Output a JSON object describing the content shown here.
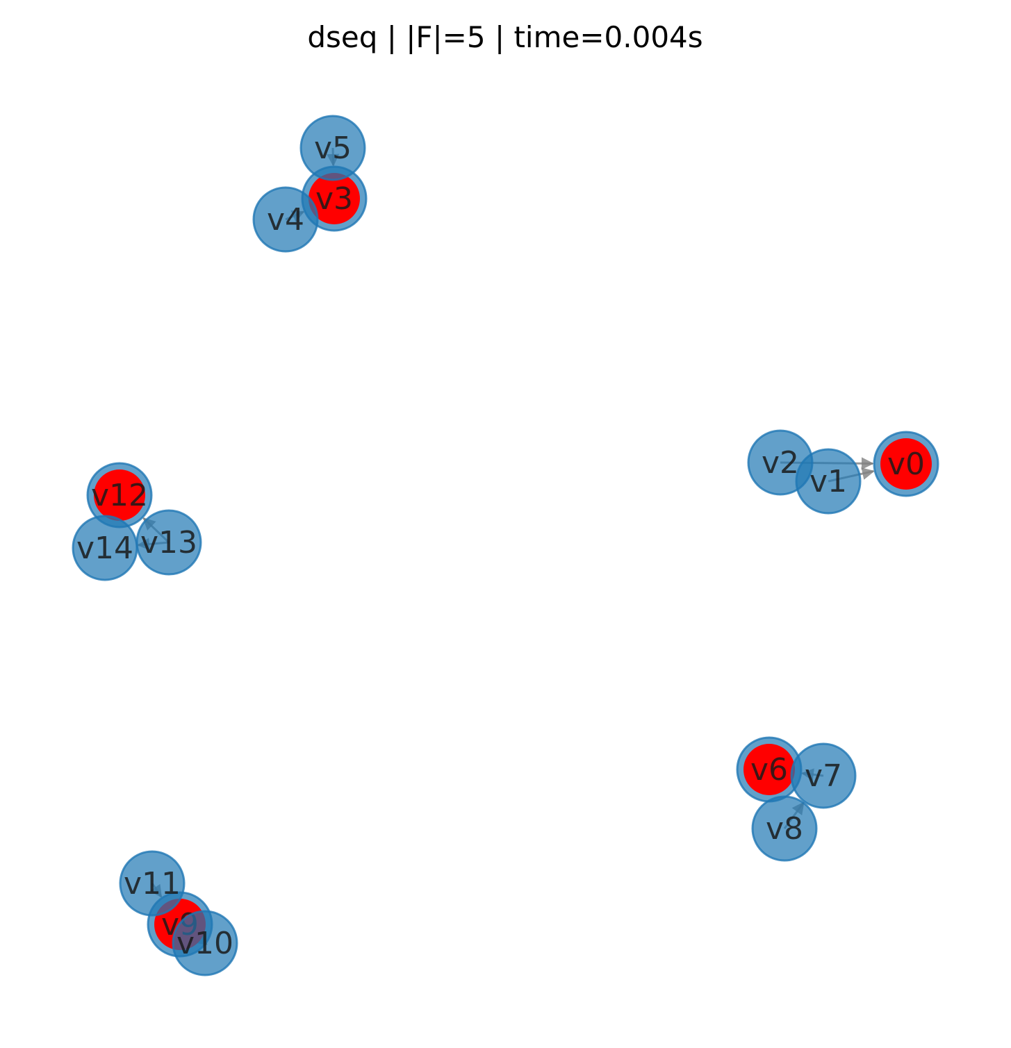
{
  "title": "dseq | |F|=5 | time=0.004s",
  "colors": {
    "node_fill": "#1f77b4",
    "node_opacity": 0.7,
    "highlight_fill": "#ff0000",
    "edge": "#808080"
  },
  "nodes": [
    {
      "id": "v0",
      "label": "v0",
      "highlighted": true
    },
    {
      "id": "v1",
      "label": "v1",
      "highlighted": false
    },
    {
      "id": "v2",
      "label": "v2",
      "highlighted": false
    },
    {
      "id": "v3",
      "label": "v3",
      "highlighted": true
    },
    {
      "id": "v4",
      "label": "v4",
      "highlighted": false
    },
    {
      "id": "v5",
      "label": "v5",
      "highlighted": false
    },
    {
      "id": "v6",
      "label": "v6",
      "highlighted": true
    },
    {
      "id": "v7",
      "label": "v7",
      "highlighted": false
    },
    {
      "id": "v8",
      "label": "v8",
      "highlighted": false
    },
    {
      "id": "v9",
      "label": "v9",
      "highlighted": true
    },
    {
      "id": "v10",
      "label": "v10",
      "highlighted": false
    },
    {
      "id": "v11",
      "label": "v11",
      "highlighted": false
    },
    {
      "id": "v12",
      "label": "v12",
      "highlighted": true
    },
    {
      "id": "v13",
      "label": "v13",
      "highlighted": false
    },
    {
      "id": "v14",
      "label": "v14",
      "highlighted": false
    }
  ],
  "edges": [
    {
      "from": "v1",
      "to": "v0"
    },
    {
      "from": "v2",
      "to": "v0"
    },
    {
      "from": "v4",
      "to": "v3"
    },
    {
      "from": "v5",
      "to": "v3"
    },
    {
      "from": "v7",
      "to": "v6"
    },
    {
      "from": "v6",
      "to": "v7"
    },
    {
      "from": "v8",
      "to": "v7"
    },
    {
      "from": "v10",
      "to": "v9"
    },
    {
      "from": "v11",
      "to": "v9"
    },
    {
      "from": "v13",
      "to": "v12"
    },
    {
      "from": "v13",
      "to": "v14"
    }
  ]
}
